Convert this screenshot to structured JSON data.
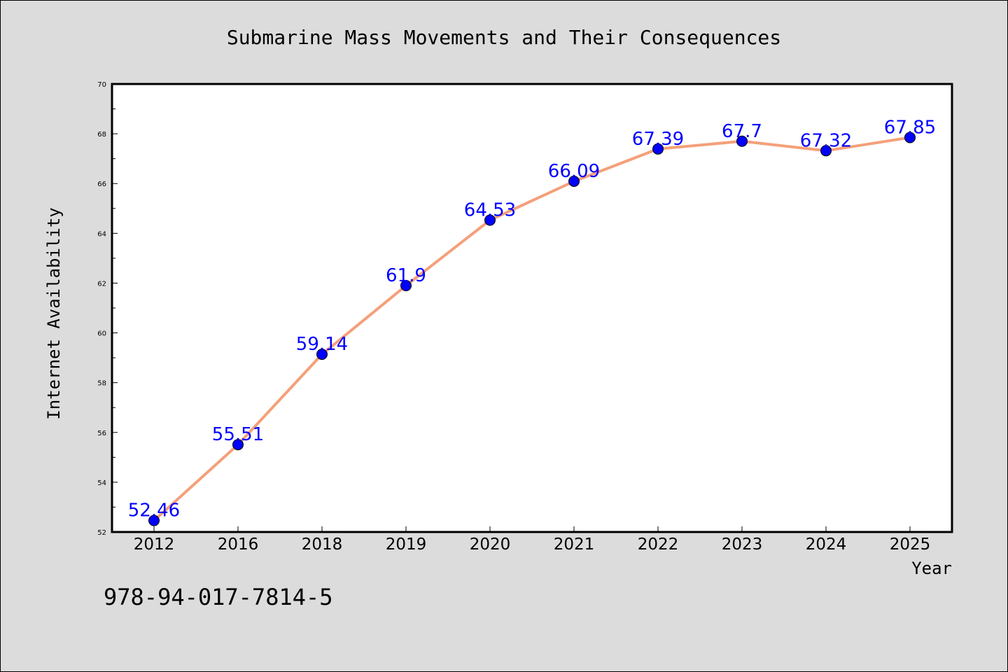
{
  "chart_data": {
    "type": "line",
    "title": "Submarine Mass Movements and Their Consequences",
    "xlabel": "Year",
    "ylabel": "Internet Availability",
    "categories": [
      "2012",
      "2016",
      "2018",
      "2019",
      "2020",
      "2021",
      "2022",
      "2023",
      "2024",
      "2025"
    ],
    "series": [
      {
        "values": [
          52.46,
          55.51,
          59.14,
          61.9,
          64.53,
          66.09,
          67.39,
          67.7,
          67.32,
          67.85
        ],
        "data_labels": [
          "52.46",
          "55.51",
          "59.14",
          "61.9",
          "64.53",
          "66.09",
          "67.39",
          "67.7",
          "67.32",
          "67.85"
        ]
      }
    ],
    "ylim": [
      52,
      70
    ],
    "yticks": [
      "52",
      "54",
      "56",
      "58",
      "60",
      "62",
      "64",
      "66",
      "68",
      "70"
    ],
    "grid": false,
    "line_color": "#f4a07a",
    "marker_color": "#0000ff",
    "label_color": "#0000ff"
  },
  "isbn_text": "978-94-017-7814-5"
}
